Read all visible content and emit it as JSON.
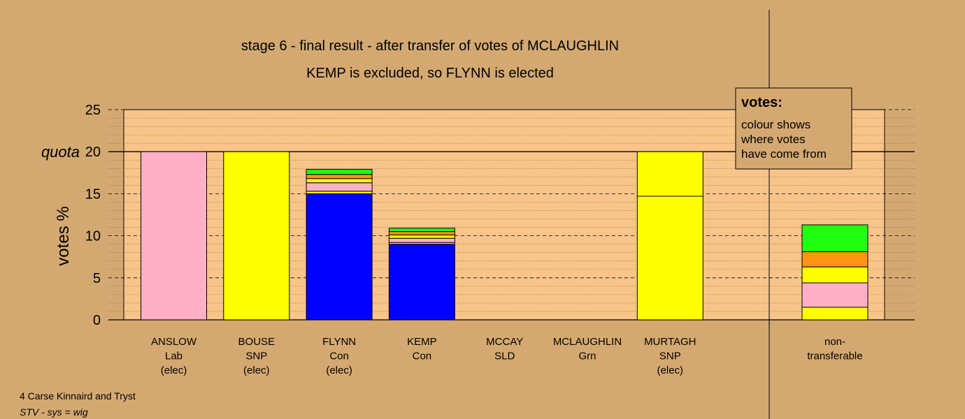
{
  "chart_data": {
    "type": "bar",
    "title": "stage 6 - final result - after transfer of votes of MCLAUGHLIN",
    "subtitle": "KEMP is excluded, so FLYNN is elected",
    "ylabel": "votes %",
    "ylim": [
      0,
      25
    ],
    "yticks": [
      0,
      5,
      10,
      15,
      20,
      25
    ],
    "quota": 20,
    "quota_label": "quota",
    "candidates": [
      {
        "name": "ANSLOW",
        "party": "Lab",
        "status": "(elec)",
        "segments": [
          {
            "value": 20,
            "color": "#ffb0c8"
          }
        ]
      },
      {
        "name": "BOUSE",
        "party": "SNP",
        "status": "(elec)",
        "segments": [
          {
            "value": 20,
            "color": "#ffff00"
          }
        ]
      },
      {
        "name": "FLYNN",
        "party": "Con",
        "status": "(elec)",
        "segments": [
          {
            "value": 15.0,
            "color": "#0000ff"
          },
          {
            "value": 0.3,
            "color": "#ffff00"
          },
          {
            "value": 1.0,
            "color": "#ffb0c8"
          },
          {
            "value": 0.5,
            "color": "#ffff00"
          },
          {
            "value": 0.5,
            "color": "#ff9411"
          },
          {
            "value": 0.6,
            "color": "#22ff11"
          }
        ]
      },
      {
        "name": "KEMP",
        "party": "Con",
        "status": "",
        "segments": [
          {
            "value": 9.0,
            "color": "#0000ff"
          },
          {
            "value": 0.2,
            "color": "#ffff00"
          },
          {
            "value": 0.5,
            "color": "#ffb0c8"
          },
          {
            "value": 0.4,
            "color": "#ffff00"
          },
          {
            "value": 0.4,
            "color": "#ff9411"
          },
          {
            "value": 0.4,
            "color": "#22ff11"
          }
        ]
      },
      {
        "name": "MCCAY",
        "party": "SLD",
        "status": "",
        "segments": []
      },
      {
        "name": "MCLAUGHLIN",
        "party": "Grn",
        "status": "",
        "segments": []
      },
      {
        "name": "MURTAGH",
        "party": "SNP",
        "status": "(elec)",
        "segments": [
          {
            "value": 14.7,
            "color": "#ffff00"
          },
          {
            "value": 5.3,
            "color": "#ffff00"
          }
        ]
      }
    ],
    "non_transferable": {
      "label_line1": "non-",
      "label_line2": "transferable",
      "segments": [
        {
          "value": 1.5,
          "color": "#ffff00"
        },
        {
          "value": 2.9,
          "color": "#ffb0c8"
        },
        {
          "value": 1.9,
          "color": "#ffff00"
        },
        {
          "value": 1.8,
          "color": "#ff9411"
        },
        {
          "value": 3.2,
          "color": "#22ff11"
        }
      ]
    },
    "legend": {
      "title": "votes:",
      "lines": [
        "colour shows",
        "where votes",
        "have come from"
      ]
    }
  },
  "footer": {
    "constituency": "4 Carse Kinnaird and Tryst",
    "system": "STV - sys = wig"
  },
  "colors": {
    "background": "#d4a971",
    "plot_area": "#f9c489"
  }
}
